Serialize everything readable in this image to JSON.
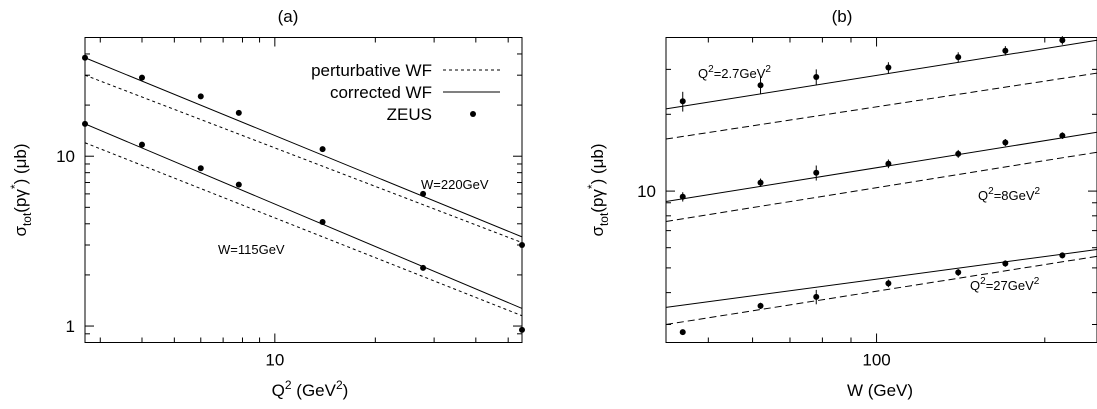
{
  "chart_data": [
    {
      "type": "line",
      "panel_label": "(a)",
      "xaxis": {
        "label_base": "Q",
        "label_sup": "2",
        "label_rest": " (GeV",
        "label_sup2": "2",
        "label_end": ")",
        "scale": "log",
        "xlim": [
          2.7,
          55
        ],
        "ticks": [
          {
            "value": 10,
            "label": "10"
          }
        ]
      },
      "yaxis": {
        "label_main": "σ",
        "label_sub": "tot",
        "label_rest": "(pγ",
        "label_sup": "*",
        "label_end": ") (μb)",
        "scale": "log",
        "ylim": [
          0.8,
          50
        ],
        "ticks": [
          {
            "value": 1,
            "label": "1"
          },
          {
            "value": 10,
            "label": "10"
          }
        ]
      },
      "legend": {
        "placement": "top-right",
        "entries": [
          {
            "label": "perturbative WF",
            "style": "dotted-line"
          },
          {
            "label": "corrected WF",
            "style": "solid-line"
          },
          {
            "label": "ZEUS",
            "style": "point"
          }
        ]
      },
      "annotations": [
        {
          "text": "W=220GeV",
          "series": "W=220GeV"
        },
        {
          "text": "W=115GeV",
          "series": "W=115GeV"
        }
      ],
      "series": [
        {
          "name": "W=220GeV",
          "points": [
            [
              2.7,
              38.0
            ],
            [
              4.0,
              29.0
            ],
            [
              6.0,
              22.5
            ],
            [
              7.8,
              18.0
            ],
            [
              13.9,
              11.0
            ],
            [
              27.8,
              6.0
            ],
            [
              55,
              3.0
            ]
          ],
          "corrected_line": [
            [
              2.7,
              38.0
            ],
            [
              55,
              3.35
            ]
          ],
          "perturbative_line": [
            [
              2.7,
              30.0
            ],
            [
              55,
              3.1
            ]
          ]
        },
        {
          "name": "W=115GeV",
          "points": [
            [
              2.7,
              15.5
            ],
            [
              4.0,
              11.7
            ],
            [
              6.0,
              8.5
            ],
            [
              7.8,
              6.8
            ],
            [
              13.9,
              4.1
            ],
            [
              27.8,
              2.2
            ],
            [
              55,
              0.95
            ]
          ],
          "corrected_line": [
            [
              2.7,
              15.5
            ],
            [
              55,
              1.27
            ]
          ],
          "perturbative_line": [
            [
              2.7,
              12.0
            ],
            [
              55,
              1.15
            ]
          ]
        }
      ]
    },
    {
      "type": "line",
      "panel_label": "(b)",
      "xaxis": {
        "label": "W (GeV)",
        "scale": "log",
        "xlim": [
          42,
          248
        ],
        "ticks": [
          {
            "value": 100,
            "label": "100"
          }
        ]
      },
      "yaxis": {
        "label_main": "σ",
        "label_sub": "tot",
        "label_rest": "(pγ",
        "label_sup": "*",
        "label_end": ") (μb)",
        "scale": "log",
        "ylim": [
          2.55,
          40
        ],
        "ticks": [
          {
            "value": 10,
            "label": "10"
          }
        ]
      },
      "annotations": [
        {
          "text_base": "Q",
          "text_sup": "2",
          "text_rest": "=2.7GeV",
          "text_sup2": "2",
          "series": "Q2=2.7GeV2"
        },
        {
          "text_base": "Q",
          "text_sup": "2",
          "text_rest": "=8GeV",
          "text_sup2": "2",
          "series": "Q2=8GeV2"
        },
        {
          "text_base": "Q",
          "text_sup": "2",
          "text_rest": "=27GeV",
          "text_sup2": "2",
          "series": "Q2=27GeV2"
        }
      ],
      "series": [
        {
          "name": "Q2=2.7GeV2",
          "points": [
            [
              45,
              22.5,
              2.0
            ],
            [
              62,
              26.0,
              2.0
            ],
            [
              78,
              28.0,
              2.0
            ],
            [
              105,
              30.5,
              1.5
            ],
            [
              140,
              33.5,
              1.5
            ],
            [
              170,
              35.5,
              1.5
            ],
            [
              215,
              39.0,
              1.5
            ]
          ],
          "corrected_line": [
            [
              42,
              21.0
            ],
            [
              248,
              39.0
            ]
          ],
          "perturbative_line": [
            [
              42,
              16.0
            ],
            [
              248,
              29.0
            ]
          ]
        },
        {
          "name": "Q2=8GeV2",
          "points": [
            [
              45,
              9.5,
              0.4
            ],
            [
              62,
              10.8,
              0.4
            ],
            [
              78,
              11.8,
              0.8
            ],
            [
              105,
              12.8,
              0.5
            ],
            [
              140,
              14.0,
              0.5
            ],
            [
              170,
              15.5,
              0.5
            ],
            [
              215,
              16.5,
              0.5
            ]
          ],
          "corrected_line": [
            [
              42,
              9.1
            ],
            [
              248,
              17.0
            ]
          ],
          "perturbative_line": [
            [
              42,
              7.6
            ],
            [
              248,
              14.2
            ]
          ]
        },
        {
          "name": "Q2=27GeV2",
          "points": [
            [
              45,
              2.8,
              0.05
            ],
            [
              62,
              3.55,
              0.1
            ],
            [
              78,
              3.85,
              0.25
            ],
            [
              105,
              4.35,
              0.15
            ],
            [
              140,
              4.8,
              0.15
            ],
            [
              170,
              5.2,
              0.15
            ],
            [
              215,
              5.6,
              0.15
            ]
          ],
          "corrected_line": [
            [
              42,
              3.5
            ],
            [
              248,
              5.9
            ]
          ],
          "perturbative_line": [
            [
              42,
              3.0
            ],
            [
              248,
              5.55
            ]
          ]
        }
      ]
    }
  ]
}
